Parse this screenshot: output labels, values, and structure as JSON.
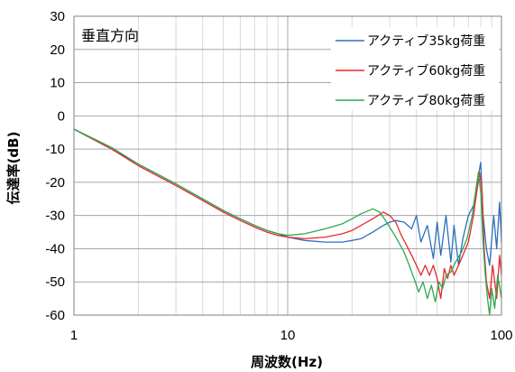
{
  "chart_data": {
    "type": "line",
    "xscale": "log",
    "xlim": [
      1,
      100
    ],
    "ylim": [
      -60,
      30
    ],
    "x_ticks": [
      "1",
      "10",
      "100"
    ],
    "y_ticks": [
      "30",
      "20",
      "10",
      "0",
      "-10",
      "-20",
      "-30",
      "-40",
      "-50",
      "-60"
    ],
    "xlabel": "周波数(Hz)",
    "ylabel": "伝達率(dB)",
    "annotation": "垂直方向",
    "grid": true,
    "legend_position": "top-right",
    "series": [
      {
        "name": "アクティブ35kg荷重",
        "color": "#2e6fbf",
        "points": [
          [
            1,
            -4
          ],
          [
            1.5,
            -10
          ],
          [
            2,
            -14.5
          ],
          [
            3,
            -20.5
          ],
          [
            4,
            -25
          ],
          [
            5,
            -28.5
          ],
          [
            6,
            -31
          ],
          [
            7,
            -33
          ],
          [
            8,
            -34.5
          ],
          [
            9,
            -35.5
          ],
          [
            10,
            -36.5
          ],
          [
            12,
            -37.5
          ],
          [
            15,
            -38
          ],
          [
            18,
            -38
          ],
          [
            20,
            -37.5
          ],
          [
            22,
            -37
          ],
          [
            25,
            -35
          ],
          [
            28,
            -33
          ],
          [
            30,
            -32
          ],
          [
            32,
            -31.5
          ],
          [
            35,
            -32
          ],
          [
            38,
            -34
          ],
          [
            40,
            -30
          ],
          [
            42,
            -38
          ],
          [
            45,
            -33
          ],
          [
            48,
            -43
          ],
          [
            50,
            -32
          ],
          [
            52,
            -42
          ],
          [
            55,
            -30
          ],
          [
            58,
            -44
          ],
          [
            60,
            -33
          ],
          [
            63,
            -45
          ],
          [
            66,
            -37
          ],
          [
            70,
            -30
          ],
          [
            74,
            -27
          ],
          [
            77,
            -20
          ],
          [
            80,
            -14
          ],
          [
            82,
            -30
          ],
          [
            85,
            -40
          ],
          [
            88,
            -45
          ],
          [
            92,
            -30
          ],
          [
            95,
            -40
          ],
          [
            98,
            -26
          ],
          [
            100,
            -38
          ]
        ]
      },
      {
        "name": "アクティブ60kg荷重",
        "color": "#e8282a",
        "points": [
          [
            1,
            -4
          ],
          [
            1.5,
            -10
          ],
          [
            2,
            -15
          ],
          [
            3,
            -21
          ],
          [
            4,
            -25.5
          ],
          [
            5,
            -29
          ],
          [
            6,
            -31.5
          ],
          [
            7,
            -33.5
          ],
          [
            8,
            -35
          ],
          [
            9,
            -36
          ],
          [
            10,
            -36.5
          ],
          [
            12,
            -37
          ],
          [
            15,
            -36.5
          ],
          [
            18,
            -35.5
          ],
          [
            20,
            -34.5
          ],
          [
            22,
            -33
          ],
          [
            25,
            -31
          ],
          [
            28,
            -29
          ],
          [
            30,
            -30
          ],
          [
            32,
            -32
          ],
          [
            34,
            -36
          ],
          [
            36,
            -39
          ],
          [
            38,
            -42
          ],
          [
            40,
            -45
          ],
          [
            42,
            -48
          ],
          [
            44,
            -45
          ],
          [
            46,
            -48
          ],
          [
            48,
            -45
          ],
          [
            50,
            -49
          ],
          [
            52,
            -55
          ],
          [
            54,
            -46
          ],
          [
            56,
            -49
          ],
          [
            58,
            -45
          ],
          [
            60,
            -48
          ],
          [
            63,
            -45
          ],
          [
            66,
            -42
          ],
          [
            70,
            -38
          ],
          [
            74,
            -30
          ],
          [
            77,
            -22
          ],
          [
            79,
            -17
          ],
          [
            81,
            -22
          ],
          [
            83,
            -40
          ],
          [
            85,
            -50
          ],
          [
            88,
            -55
          ],
          [
            91,
            -45
          ],
          [
            95,
            -55
          ],
          [
            98,
            -42
          ],
          [
            100,
            -48
          ]
        ]
      },
      {
        "name": "アクティブ80kg荷重",
        "color": "#2fa84f",
        "points": [
          [
            1,
            -4
          ],
          [
            1.5,
            -9.5
          ],
          [
            2,
            -14.5
          ],
          [
            3,
            -20.5
          ],
          [
            4,
            -25
          ],
          [
            5,
            -28.5
          ],
          [
            6,
            -31
          ],
          [
            7,
            -33
          ],
          [
            8,
            -34.5
          ],
          [
            9,
            -35.5
          ],
          [
            10,
            -36
          ],
          [
            12,
            -35.5
          ],
          [
            15,
            -34
          ],
          [
            18,
            -32.5
          ],
          [
            20,
            -31
          ],
          [
            22,
            -29.5
          ],
          [
            25,
            -28
          ],
          [
            27,
            -29
          ],
          [
            29,
            -32
          ],
          [
            31,
            -35
          ],
          [
            33,
            -38
          ],
          [
            35,
            -41
          ],
          [
            37,
            -45
          ],
          [
            39,
            -49
          ],
          [
            41,
            -53
          ],
          [
            43,
            -50
          ],
          [
            45,
            -55
          ],
          [
            47,
            -51
          ],
          [
            49,
            -56
          ],
          [
            51,
            -50
          ],
          [
            53,
            -52
          ],
          [
            55,
            -48
          ],
          [
            58,
            -47
          ],
          [
            61,
            -44
          ],
          [
            65,
            -41
          ],
          [
            69,
            -37
          ],
          [
            73,
            -30
          ],
          [
            76,
            -22
          ],
          [
            78,
            -17
          ],
          [
            80,
            -23
          ],
          [
            82,
            -38
          ],
          [
            84,
            -48
          ],
          [
            86,
            -55
          ],
          [
            88,
            -60
          ],
          [
            90,
            -52
          ],
          [
            93,
            -58
          ],
          [
            96,
            -48
          ],
          [
            100,
            -55
          ]
        ]
      }
    ]
  }
}
